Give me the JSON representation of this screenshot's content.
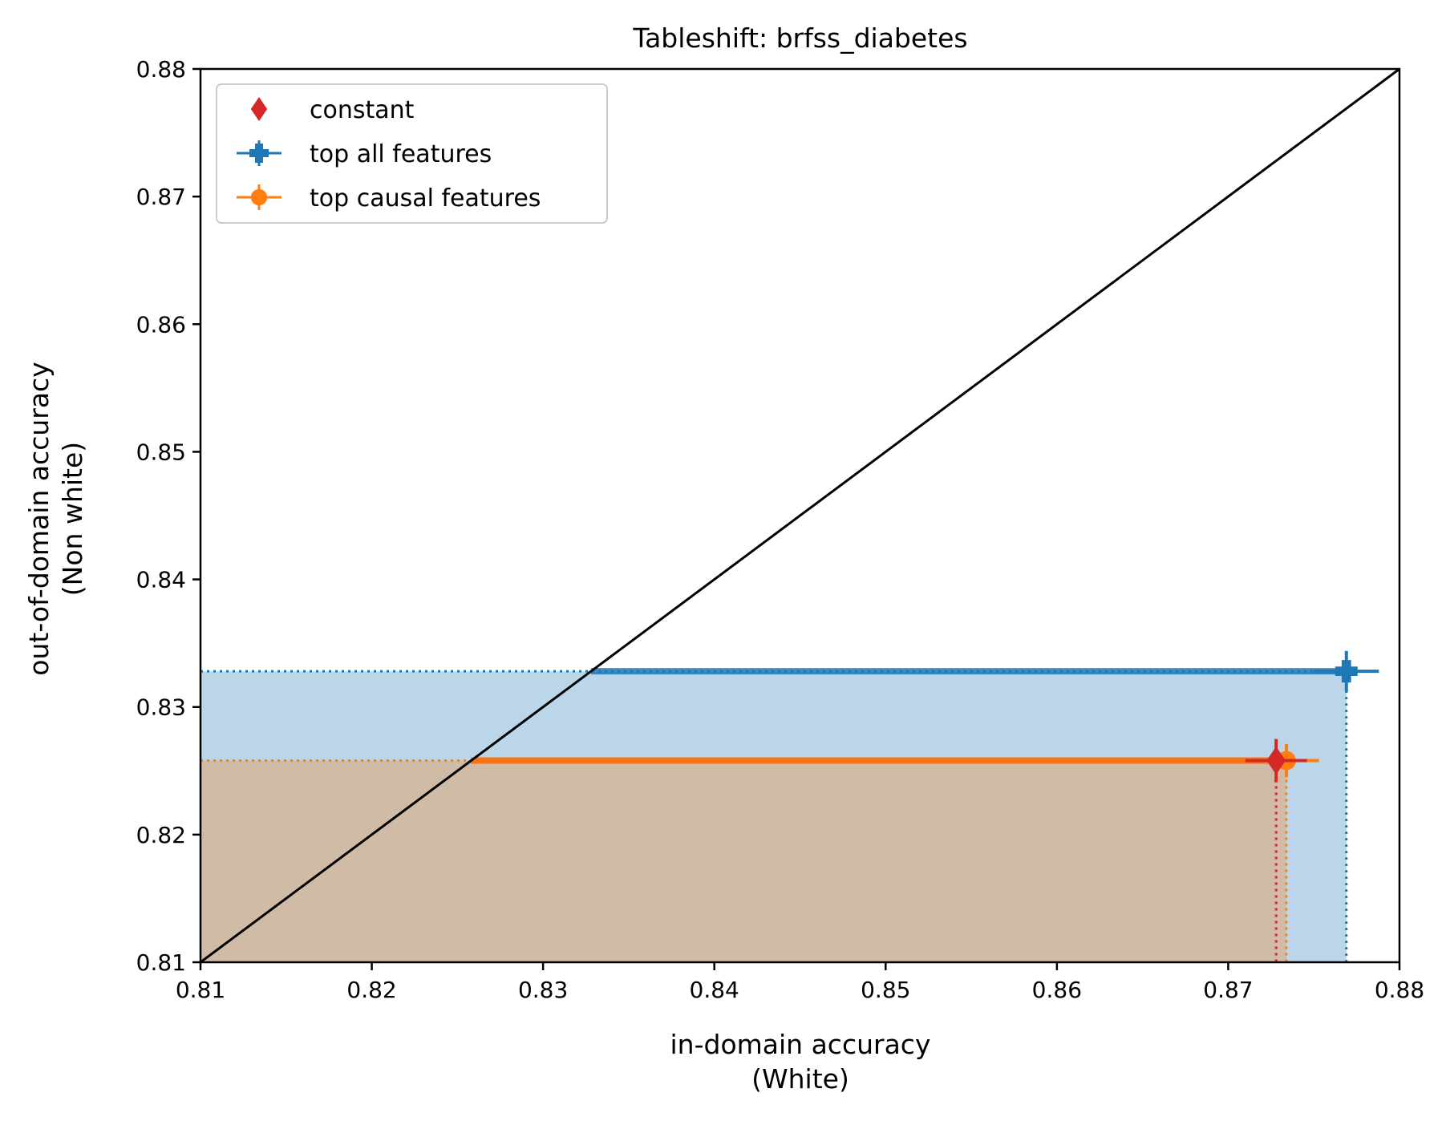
{
  "chart_data": {
    "type": "scatter",
    "title": "Tableshift: brfss_diabetes",
    "xlabel": [
      "in-domain accuracy",
      "(White)"
    ],
    "ylabel": [
      "out-of-domain accuracy",
      "(Non white)"
    ],
    "xlim": [
      0.81,
      0.88
    ],
    "ylim": [
      0.81,
      0.88
    ],
    "x_ticks": [
      "0.81",
      "0.82",
      "0.83",
      "0.84",
      "0.85",
      "0.86",
      "0.87",
      "0.88"
    ],
    "y_ticks": [
      "0.81",
      "0.82",
      "0.83",
      "0.84",
      "0.85",
      "0.86",
      "0.87",
      "0.88"
    ],
    "grid": false,
    "legend_position": "top-left",
    "diagonal": true,
    "series": [
      {
        "name": "constant",
        "marker": "diamond",
        "color": "#d62728",
        "x": 0.8728,
        "y": 0.8258,
        "xerr": 0.0018,
        "yerr": 0.0017,
        "shade": false
      },
      {
        "name": "top all features",
        "marker": "plus-filled",
        "color": "#1f77b4",
        "x": 0.8769,
        "y": 0.8328,
        "xerr": 0.0019,
        "yerr": 0.0016,
        "shade": true
      },
      {
        "name": "top causal features",
        "marker": "circle",
        "color": "#ff7f0e",
        "x": 0.8734,
        "y": 0.8258,
        "xerr": 0.0019,
        "yerr": 0.0013,
        "shade": true
      }
    ]
  }
}
